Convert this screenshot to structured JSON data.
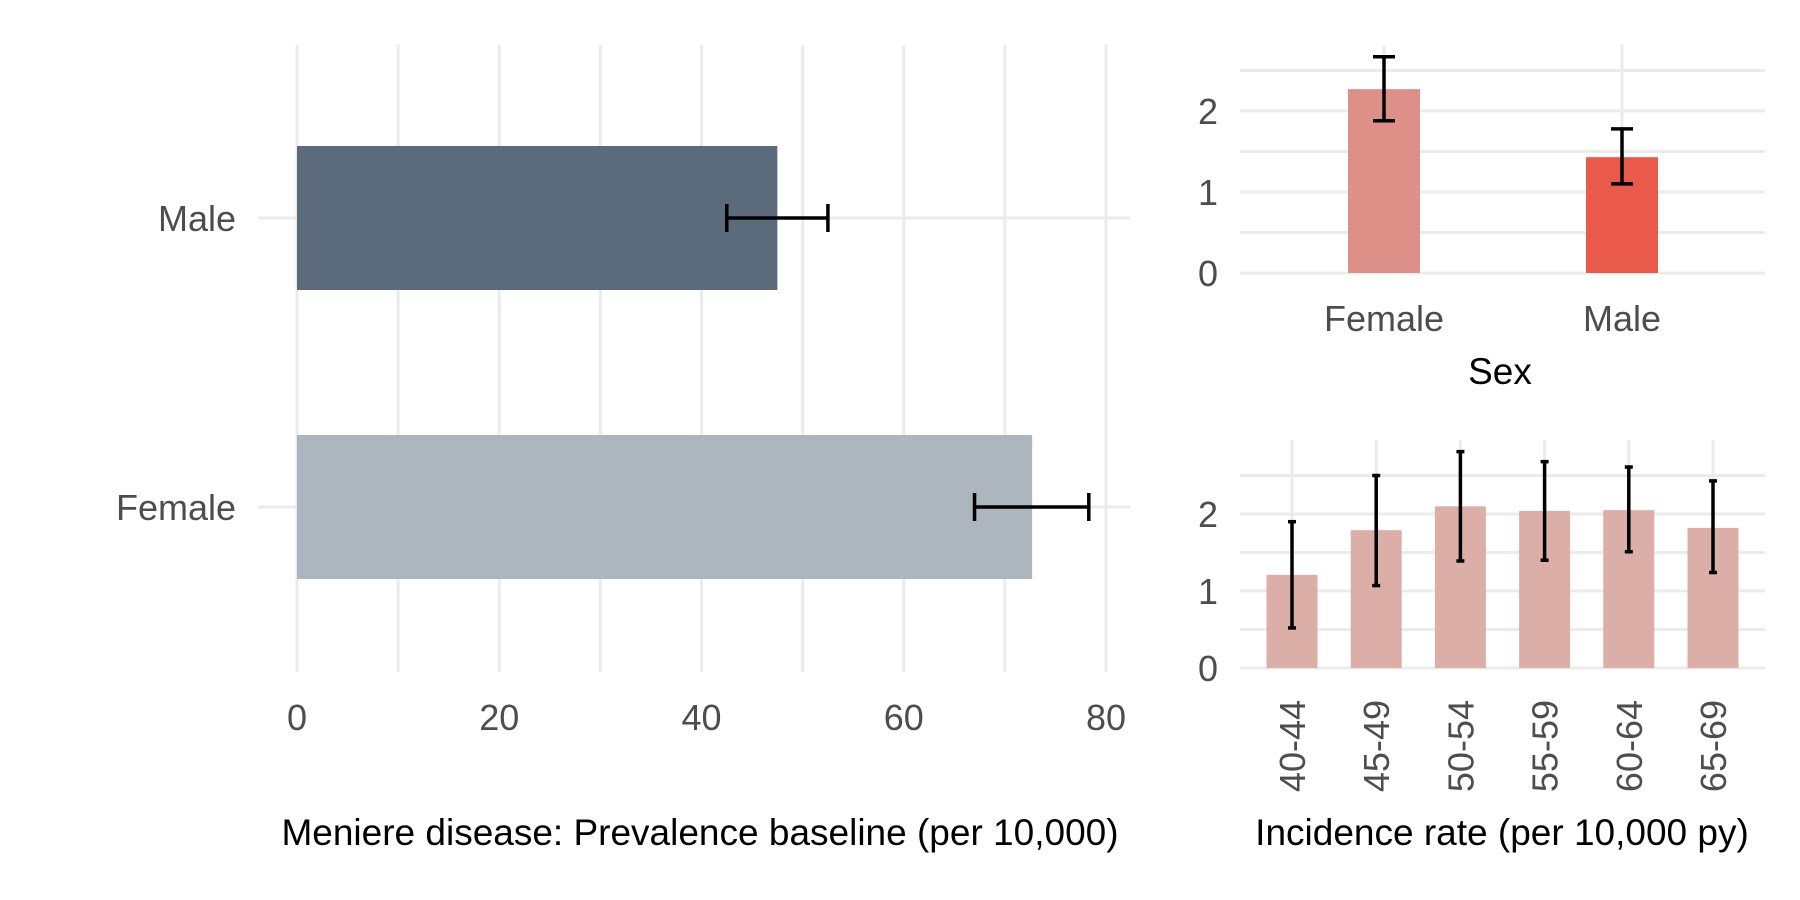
{
  "chart_data": [
    {
      "type": "bar",
      "orientation": "horizontal",
      "categories": [
        "Male",
        "Female"
      ],
      "values": [
        47.5,
        72.7
      ],
      "error_low": [
        42.5,
        67.0
      ],
      "error_high": [
        52.5,
        78.3
      ],
      "colors": [
        "#5c6b7b",
        "#adb5be"
      ],
      "xlim": [
        0,
        82
      ],
      "xticks": [
        "0",
        "20",
        "40",
        "60",
        "80"
      ],
      "xlabel": "Meniere disease: Prevalence baseline (per 10,000)",
      "ylabel": "",
      "grid": true
    },
    {
      "type": "bar",
      "categories": [
        "Female",
        "Male"
      ],
      "values": [
        2.27,
        1.43
      ],
      "error_low": [
        1.88,
        1.1
      ],
      "error_high": [
        2.67,
        1.78
      ],
      "colors": [
        "#dd9088",
        "#ea5a4a"
      ],
      "ylim": [
        0,
        2.85
      ],
      "yticks": [
        "0",
        "1",
        "2"
      ],
      "xlabel": "Sex",
      "ylabel": "",
      "grid": true
    },
    {
      "type": "bar",
      "categories": [
        "40-44",
        "45-49",
        "50-54",
        "55-59",
        "60-64",
        "65-69"
      ],
      "values": [
        1.21,
        1.79,
        2.1,
        2.04,
        2.05,
        1.82
      ],
      "error_low": [
        0.52,
        1.07,
        1.39,
        1.4,
        1.51,
        1.24
      ],
      "error_high": [
        1.9,
        2.5,
        2.81,
        2.68,
        2.61,
        2.43
      ],
      "colors": [
        "#dcaea8"
      ],
      "ylim": [
        0,
        2.95
      ],
      "yticks": [
        "0",
        "1",
        "2"
      ],
      "xlabel": "Incidence rate (per 10,000 py)",
      "ylabel": "",
      "grid": true
    }
  ]
}
